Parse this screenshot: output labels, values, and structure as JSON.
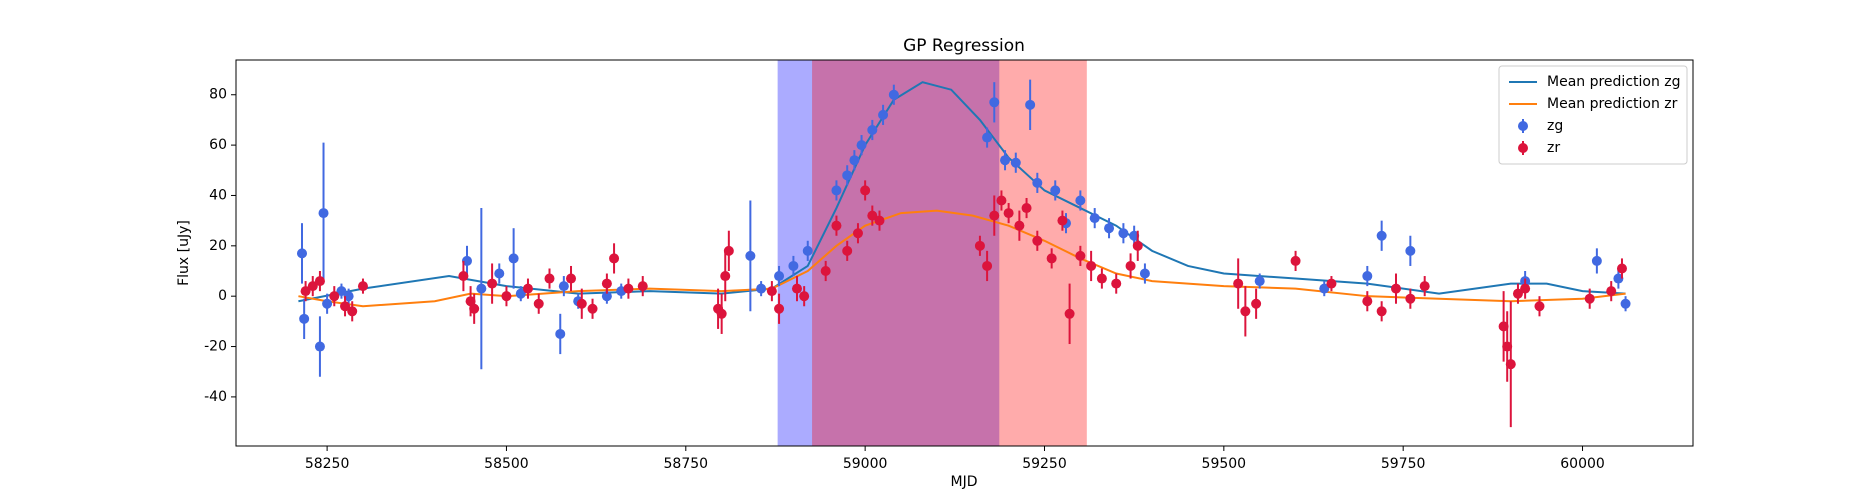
{
  "chart_data": {
    "type": "scatter",
    "title": "GP Regression",
    "xlabel": "MJD",
    "ylabel": "Flux [uJy]",
    "xlim": [
      58123,
      60154
    ],
    "ylim": [
      -59.5,
      93.8
    ],
    "xticks": [
      58250,
      58500,
      58750,
      59000,
      59250,
      59500,
      59750,
      60000
    ],
    "yticks": [
      -40,
      -20,
      0,
      20,
      40,
      60,
      80
    ],
    "legend": "upper right",
    "spans": [
      {
        "start": 58878,
        "end": 59187,
        "color": "#0000ff"
      },
      {
        "start": 58926,
        "end": 59309,
        "color": "#ff0000"
      }
    ],
    "series": [
      {
        "name": "Mean prediction zg",
        "type": "line",
        "color": "#1f77b4",
        "x": [
          58210,
          58300,
          58420,
          58500,
          58600,
          58700,
          58800,
          58870,
          58920,
          58960,
          59000,
          59040,
          59080,
          59120,
          59160,
          59200,
          59250,
          59300,
          59350,
          59400,
          59450,
          59500,
          59600,
          59700,
          59800,
          59900,
          59950,
          60000,
          60060
        ],
        "values": [
          -2,
          3,
          8,
          4,
          1,
          2,
          1,
          3,
          12,
          35,
          60,
          78,
          85,
          82,
          70,
          55,
          42,
          35,
          28,
          18,
          12,
          9,
          7,
          5,
          1,
          5,
          5,
          2,
          1
        ]
      },
      {
        "name": "Mean prediction zr",
        "type": "line",
        "color": "#ff7f0e",
        "x": [
          58210,
          58250,
          58300,
          58400,
          58450,
          58500,
          58600,
          58700,
          58800,
          58870,
          58920,
          58960,
          59000,
          59050,
          59100,
          59150,
          59200,
          59250,
          59300,
          59350,
          59400,
          59500,
          59600,
          59700,
          59800,
          59900,
          60000,
          60060
        ],
        "values": [
          0,
          -2,
          -4,
          -2,
          1,
          0,
          2,
          3,
          2,
          3,
          10,
          20,
          28,
          33,
          34,
          32,
          28,
          22,
          15,
          9,
          6,
          4,
          3,
          0,
          -1,
          -2,
          -1,
          1
        ]
      },
      {
        "name": "zg",
        "type": "errorbar",
        "color": "#4169e1",
        "x": [
          58215,
          58218,
          58240,
          58245,
          58250,
          58270,
          58280,
          58445,
          58465,
          58490,
          58510,
          58520,
          58575,
          58580,
          58600,
          58640,
          58660,
          58840,
          58855,
          58880,
          58900,
          58920,
          58960,
          58975,
          58985,
          58995,
          59010,
          59025,
          59040,
          59170,
          59180,
          59195,
          59210,
          59230,
          59240,
          59265,
          59280,
          59300,
          59320,
          59340,
          59360,
          59375,
          59390,
          59550,
          59640,
          59700,
          59720,
          59760,
          59920,
          60020,
          60050,
          60060
        ],
        "values": [
          17,
          -9,
          -20,
          33,
          -3,
          2,
          0,
          14,
          3,
          9,
          15,
          1,
          -15,
          4,
          -2,
          0,
          2,
          16,
          3,
          8,
          12,
          18,
          42,
          48,
          54,
          60,
          66,
          72,
          80,
          63,
          77,
          54,
          53,
          76,
          45,
          42,
          29,
          38,
          31,
          27,
          25,
          24,
          9,
          6,
          3,
          8,
          24,
          18,
          6,
          14,
          7,
          -3
        ],
        "errors": [
          12,
          8,
          12,
          28,
          4,
          3,
          3,
          6,
          32,
          4,
          12,
          3,
          8,
          4,
          3,
          3,
          3,
          22,
          3,
          4,
          4,
          4,
          4,
          4,
          4,
          4,
          4,
          4,
          4,
          4,
          8,
          4,
          4,
          10,
          4,
          4,
          4,
          4,
          4,
          4,
          4,
          4,
          4,
          3,
          3,
          4,
          6,
          6,
          4,
          5,
          4,
          3
        ]
      },
      {
        "name": "zr",
        "type": "errorbar",
        "color": "#dc143c",
        "x": [
          58220,
          58230,
          58240,
          58260,
          58275,
          58285,
          58300,
          58440,
          58450,
          58455,
          58480,
          58500,
          58530,
          58545,
          58560,
          58590,
          58605,
          58620,
          58640,
          58650,
          58670,
          58690,
          58795,
          58800,
          58805,
          58810,
          58870,
          58880,
          58905,
          58915,
          58945,
          58960,
          58975,
          58990,
          59000,
          59010,
          59020,
          59160,
          59170,
          59180,
          59190,
          59200,
          59215,
          59225,
          59240,
          59260,
          59275,
          59285,
          59300,
          59315,
          59330,
          59350,
          59370,
          59380,
          59520,
          59530,
          59545,
          59600,
          59650,
          59700,
          59720,
          59740,
          59760,
          59780,
          59890,
          59895,
          59900,
          59910,
          59920,
          59940,
          60010,
          60040,
          60055
        ],
        "values": [
          2,
          4,
          6,
          0,
          -4,
          -6,
          4,
          8,
          -2,
          -5,
          5,
          0,
          3,
          -3,
          7,
          7,
          -3,
          -5,
          5,
          15,
          3,
          4,
          -5,
          -7,
          8,
          18,
          2,
          -5,
          3,
          0,
          10,
          28,
          18,
          25,
          42,
          32,
          30,
          20,
          12,
          32,
          38,
          33,
          28,
          35,
          22,
          15,
          30,
          -7,
          16,
          12,
          7,
          5,
          12,
          20,
          5,
          -6,
          -3,
          14,
          5,
          -2,
          -6,
          3,
          -1,
          4,
          -12,
          -20,
          -27,
          1,
          3,
          -4,
          -1,
          2,
          11
        ],
        "errors": [
          4,
          4,
          4,
          4,
          4,
          4,
          3,
          6,
          6,
          6,
          8,
          4,
          4,
          4,
          4,
          5,
          6,
          4,
          4,
          6,
          4,
          4,
          8,
          8,
          10,
          8,
          4,
          6,
          5,
          4,
          4,
          4,
          4,
          4,
          4,
          4,
          4,
          4,
          6,
          8,
          4,
          4,
          6,
          4,
          4,
          4,
          4,
          12,
          4,
          6,
          4,
          4,
          5,
          6,
          10,
          10,
          6,
          4,
          3,
          4,
          4,
          6,
          4,
          4,
          14,
          14,
          25,
          4,
          4,
          4,
          4,
          4,
          4
        ]
      }
    ]
  }
}
